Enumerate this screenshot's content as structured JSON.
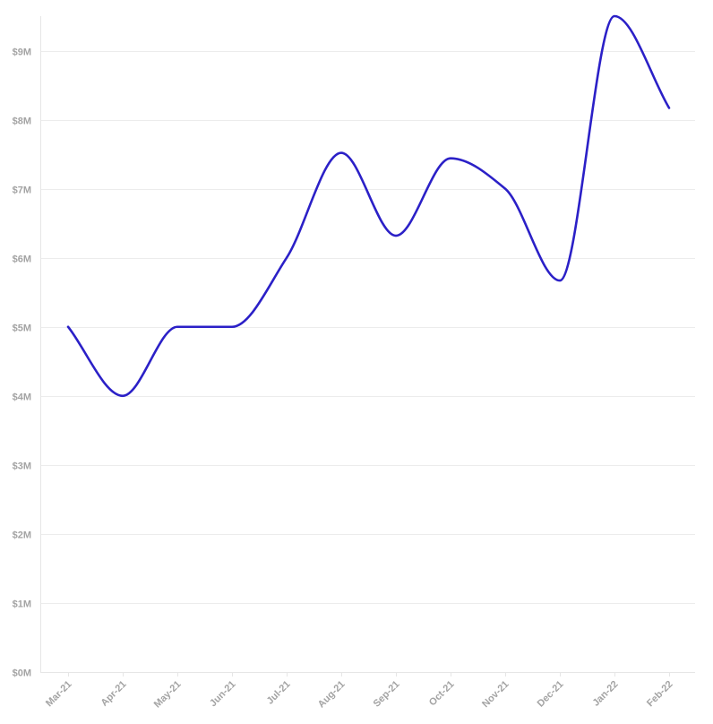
{
  "chart_data": {
    "type": "line",
    "title": "",
    "xlabel": "",
    "ylabel": "",
    "categories": [
      "Mar-21",
      "Apr-21",
      "May-21",
      "Jun-21",
      "Jul-21",
      "Aug-21",
      "Sep-21",
      "Oct-21",
      "Nov-21",
      "Dec-21",
      "Jan-22",
      "Feb-22"
    ],
    "series": [
      {
        "values": [
          5.0,
          4.0,
          5.0,
          5.0,
          6.0,
          7.52,
          6.32,
          7.44,
          7.0,
          5.67,
          9.5,
          8.17
        ],
        "color": "#2b20c7"
      }
    ],
    "y_unit": "millions USD",
    "ylim": [
      0,
      9.5
    ],
    "y_ticks": [
      0,
      1,
      2,
      3,
      4,
      5,
      6,
      7,
      8,
      9
    ],
    "y_tick_labels": [
      "$0M",
      "$1M",
      "$2M",
      "$3M",
      "$4M",
      "$5M",
      "$6M",
      "$7M",
      "$8M",
      "$9M"
    ],
    "grid": true,
    "legend": "none",
    "x_tick_label_rotation": "-45deg",
    "curve": "smooth"
  }
}
